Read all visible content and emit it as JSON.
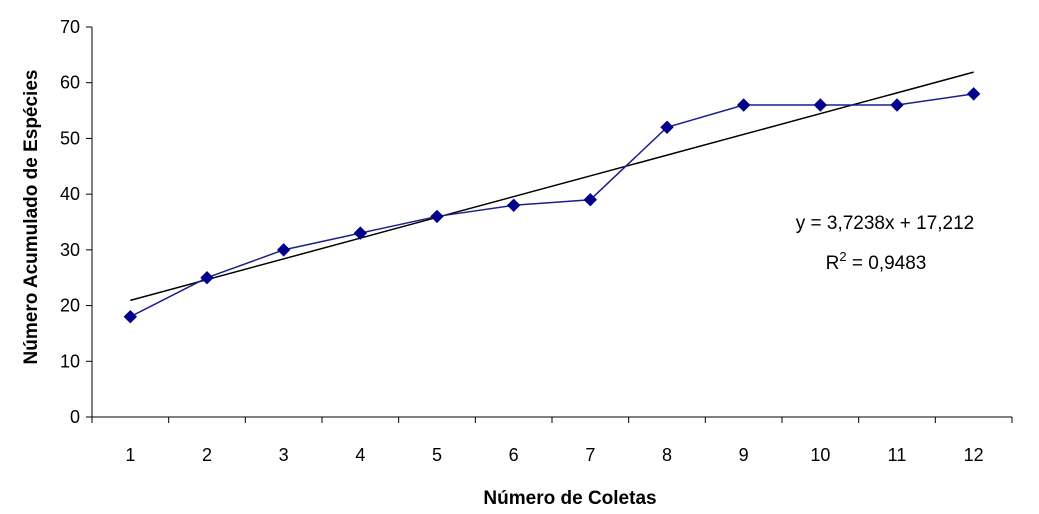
{
  "chart_data": {
    "type": "line",
    "xlabel": "Número de Coletas",
    "ylabel": "Número Acumulado de Espécies",
    "categories": [
      "1",
      "2",
      "3",
      "4",
      "5",
      "6",
      "7",
      "8",
      "9",
      "10",
      "11",
      "12"
    ],
    "ylim": [
      0,
      70
    ],
    "yticks": [
      0,
      10,
      20,
      30,
      40,
      50,
      60,
      70
    ],
    "yticks_labels": [
      "0",
      "10",
      "20",
      "30",
      "40",
      "50",
      "60",
      "70"
    ],
    "grid": false,
    "legend": "none",
    "series": [
      {
        "values": [
          18,
          25,
          30,
          33,
          36,
          38,
          39,
          52,
          56,
          56,
          56,
          58
        ],
        "color": "#1f1f8c",
        "marker": "diamond"
      }
    ],
    "trendline": {
      "slope": 3.7238,
      "intercept": 17.212,
      "color": "#000000",
      "equation_label": "y = 3,7238x + 17,212",
      "r2_prefix": "R",
      "r2_exponent": "2",
      "r2_suffix": " = 0,9483"
    }
  }
}
